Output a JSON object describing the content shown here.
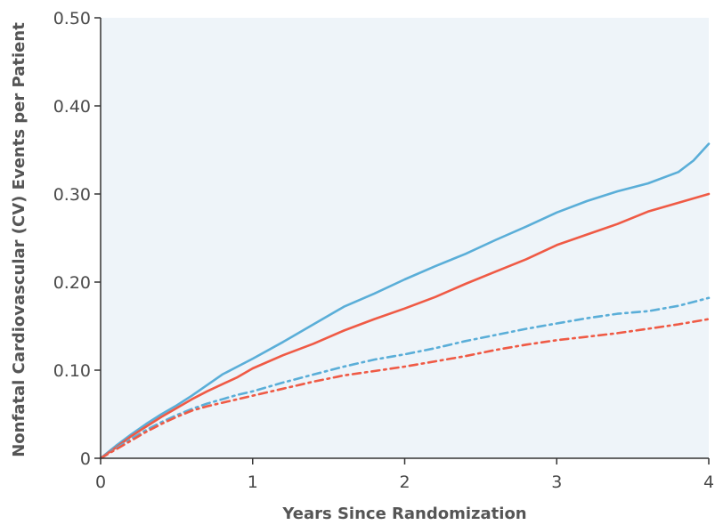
{
  "chart_data": {
    "type": "line",
    "title": "",
    "xlabel": "Years Since Randomization",
    "ylabel": "Nonfatal Cardiovascular (CV) Events per Patient",
    "xlim": [
      0,
      4
    ],
    "ylim": [
      0,
      0.5
    ],
    "x_ticks": [
      {
        "value": 0,
        "label": "0"
      },
      {
        "value": 1,
        "label": "1"
      },
      {
        "value": 2,
        "label": "2"
      },
      {
        "value": 3,
        "label": "3"
      },
      {
        "value": 4,
        "label": "4"
      }
    ],
    "y_ticks": [
      {
        "value": 0,
        "label": "0"
      },
      {
        "value": 0.1,
        "label": "0.10"
      },
      {
        "value": 0.2,
        "label": "0.20"
      },
      {
        "value": 0.3,
        "label": "0.30"
      },
      {
        "value": 0.4,
        "label": "0.40"
      },
      {
        "value": 0.5,
        "label": "0.50"
      }
    ],
    "grid": false,
    "legend": "none",
    "plot_background": "#eef4f9",
    "series": [
      {
        "color": "#5aaed8",
        "dash": "solid",
        "x": [
          0,
          0.1,
          0.2,
          0.3,
          0.4,
          0.5,
          0.6,
          0.7,
          0.8,
          0.9,
          1.0,
          1.2,
          1.4,
          1.6,
          1.8,
          2.0,
          2.2,
          2.4,
          2.6,
          2.8,
          3.0,
          3.2,
          3.4,
          3.6,
          3.8,
          3.9,
          4.0
        ],
        "y": [
          0,
          0.014,
          0.027,
          0.039,
          0.05,
          0.06,
          0.071,
          0.083,
          0.095,
          0.104,
          0.113,
          0.132,
          0.152,
          0.172,
          0.187,
          0.203,
          0.218,
          0.232,
          0.248,
          0.263,
          0.279,
          0.292,
          0.303,
          0.312,
          0.325,
          0.338,
          0.357
        ]
      },
      {
        "color": "#ef5a45",
        "dash": "solid",
        "x": [
          0,
          0.1,
          0.2,
          0.3,
          0.4,
          0.5,
          0.6,
          0.7,
          0.8,
          0.9,
          1.0,
          1.2,
          1.4,
          1.6,
          1.8,
          2.0,
          2.2,
          2.4,
          2.6,
          2.8,
          3.0,
          3.2,
          3.4,
          3.6,
          3.8,
          4.0
        ],
        "y": [
          0,
          0.012,
          0.025,
          0.036,
          0.047,
          0.057,
          0.067,
          0.076,
          0.084,
          0.092,
          0.102,
          0.117,
          0.13,
          0.145,
          0.158,
          0.17,
          0.183,
          0.198,
          0.212,
          0.226,
          0.242,
          0.254,
          0.266,
          0.28,
          0.29,
          0.3
        ]
      },
      {
        "color": "#5aaed8",
        "dash": "dashdot",
        "x": [
          0,
          0.1,
          0.2,
          0.3,
          0.4,
          0.5,
          0.6,
          0.7,
          0.8,
          0.9,
          1.0,
          1.2,
          1.4,
          1.6,
          1.8,
          2.0,
          2.2,
          2.4,
          2.6,
          2.8,
          3.0,
          3.2,
          3.4,
          3.6,
          3.8,
          4.0
        ],
        "y": [
          0,
          0.011,
          0.022,
          0.032,
          0.041,
          0.049,
          0.056,
          0.062,
          0.067,
          0.072,
          0.076,
          0.086,
          0.095,
          0.104,
          0.112,
          0.118,
          0.125,
          0.133,
          0.14,
          0.147,
          0.153,
          0.159,
          0.164,
          0.167,
          0.173,
          0.182
        ]
      },
      {
        "color": "#ef5a45",
        "dash": "dashdot",
        "x": [
          0,
          0.1,
          0.2,
          0.3,
          0.4,
          0.5,
          0.6,
          0.7,
          0.8,
          0.9,
          1.0,
          1.2,
          1.4,
          1.6,
          1.8,
          2.0,
          2.2,
          2.4,
          2.6,
          2.8,
          3.0,
          3.2,
          3.4,
          3.6,
          3.8,
          4.0
        ],
        "y": [
          0,
          0.01,
          0.02,
          0.03,
          0.039,
          0.047,
          0.054,
          0.059,
          0.063,
          0.067,
          0.071,
          0.079,
          0.087,
          0.094,
          0.099,
          0.104,
          0.11,
          0.116,
          0.123,
          0.129,
          0.134,
          0.138,
          0.142,
          0.147,
          0.152,
          0.158
        ]
      }
    ]
  }
}
